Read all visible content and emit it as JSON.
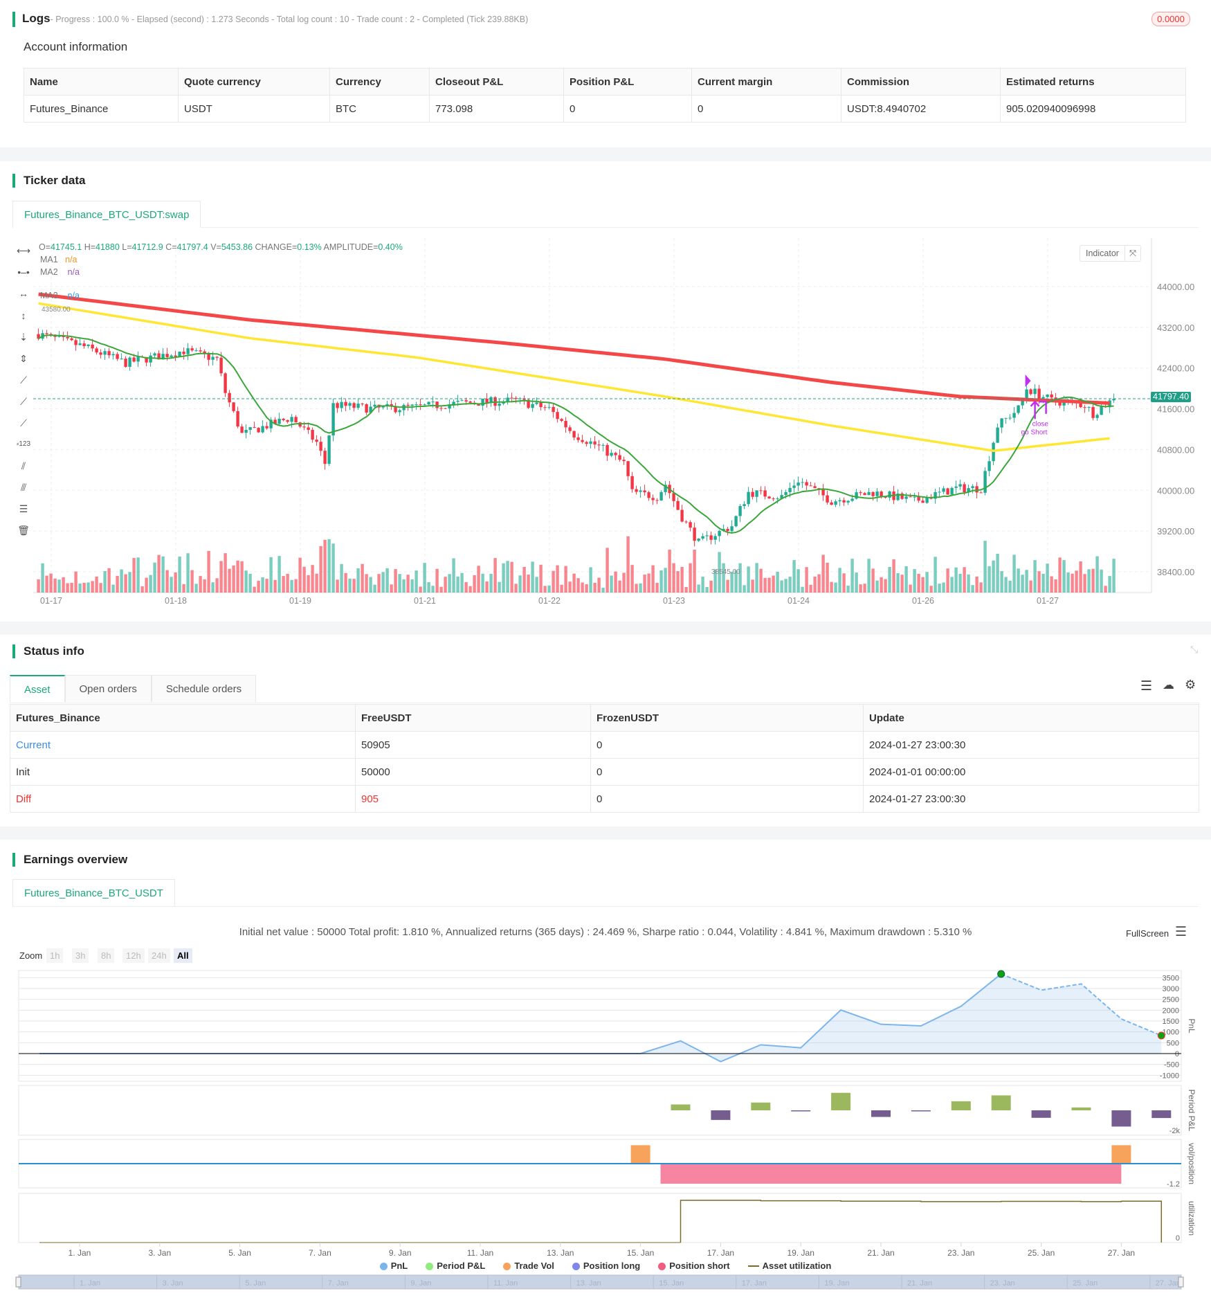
{
  "logs": {
    "title": "Logs",
    "status": "- Progress : 100.0 % - Elapsed (second) : 1.273  Seconds - Total log count : 10 - Trade count : 2 - Completed (Tick 239.88KB)",
    "badge": "0.0000"
  },
  "account": {
    "title": "Account information",
    "columns": [
      "Name",
      "Quote currency",
      "Currency",
      "Closeout P&L",
      "Position P&L",
      "Current margin",
      "Commission",
      "Estimated returns"
    ],
    "row": [
      "Futures_Binance",
      "USDT",
      "BTC",
      "773.098",
      "0",
      "0",
      "USDT:8.4940702",
      "905.020940096998"
    ]
  },
  "ticker": {
    "title": "Ticker data",
    "tab": "Futures_Binance_BTC_USDT:swap",
    "ohlc": {
      "o_label": "O=",
      "o": "41745.1",
      "h_label": " H=",
      "h": "41880",
      "l_label": " L=",
      "l": "41712.9",
      "c_label": " C=",
      "c": "41797.4",
      "v_label": " V=",
      "v": "5453.86",
      "chg_label": " CHANGE=",
      "chg": "0.13%",
      "amp_label": " AMPLITUDE=",
      "amp": "0.40%"
    },
    "ma": [
      {
        "label": "MA1",
        "value": "n/a",
        "color": "#f7931a"
      },
      {
        "label": "MA2",
        "value": "n/a",
        "color": "#9b59b6"
      },
      {
        "label": "MA3",
        "value": "n/a",
        "color": "#3498db"
      }
    ],
    "indicator_label": "Indicator",
    "last_price": "41797.40",
    "high_label": "43580.00",
    "low_label": "38545.00",
    "signals": {
      "close": "close",
      "short": "go Short"
    },
    "y_ticks": [
      "44000.00",
      "43200.00",
      "42400.00",
      "41600.00",
      "40800.00",
      "40000.00",
      "39200.00",
      "38400.00"
    ],
    "x_ticks": [
      "01-17",
      "01-18",
      "01-19",
      "01-21",
      "01-22",
      "01-23",
      "01-24",
      "01-26",
      "01-27"
    ],
    "colors": {
      "up": "#22ab94",
      "down": "#f23645",
      "ma_long": "#f44747",
      "ma_mid": "#ffe633",
      "ma_fast": "#3aa63a"
    },
    "price_path": [
      [
        "01-16 21:00",
        43067
      ],
      [
        "01-17 08:00",
        42820
      ],
      [
        "01-17 18:00",
        42500
      ],
      [
        "01-18 08:00",
        42740
      ],
      [
        "01-18 16:00",
        42576
      ],
      [
        "01-18 18:00",
        41920
      ],
      [
        "01-18 22:00",
        41100
      ],
      [
        "01-19 04:00",
        41270
      ],
      [
        "01-19 10:00",
        41430
      ],
      [
        "01-19 16:00",
        40940
      ],
      [
        "01-19 18:00",
        40530
      ],
      [
        "01-19 20:00",
        41675
      ],
      [
        "01-20 06:00",
        41600
      ],
      [
        "01-20 16:00",
        41630
      ],
      [
        "01-21 02:00",
        41710
      ],
      [
        "01-21 16:00",
        41760
      ],
      [
        "01-22 00:00",
        41600
      ],
      [
        "01-22 06:00",
        41100
      ],
      [
        "01-22 12:00",
        40860
      ],
      [
        "01-22 18:00",
        40530
      ],
      [
        "01-22 20:00",
        39960
      ],
      [
        "01-23 02:00",
        39875
      ],
      [
        "01-23 04:00",
        40120
      ],
      [
        "01-23 08:00",
        39470
      ],
      [
        "01-23 12:00",
        38970
      ],
      [
        "01-23 16:00",
        39140
      ],
      [
        "01-23 20:00",
        39300
      ],
      [
        "01-24 00:00",
        39960
      ],
      [
        "01-24 08:00",
        39875
      ],
      [
        "01-24 12:00",
        40200
      ],
      [
        "01-24 20:00",
        39790
      ],
      [
        "01-25 06:00",
        39960
      ],
      [
        "01-25 16:00",
        39790
      ],
      [
        "01-26 02:00",
        40040
      ],
      [
        "01-26 08:00",
        40040
      ],
      [
        "01-26 12:00",
        41270
      ],
      [
        "01-26 17:00",
        41600
      ],
      [
        "01-26 19:00",
        42000
      ],
      [
        "01-27 01:00",
        41760
      ],
      [
        "01-27 09:00",
        41675
      ],
      [
        "01-27 11:00",
        41510
      ],
      [
        "01-27 16:00",
        41797.4
      ]
    ],
    "ma_long_path": [
      [
        "01-16 21:00",
        43850
      ],
      [
        "01-19 00:00",
        43345
      ],
      [
        "01-21 12:00",
        42900
      ],
      [
        "01-23 04:00",
        42575
      ],
      [
        "01-24 20:00",
        42118
      ],
      [
        "01-26 03:00",
        41840
      ],
      [
        "01-27 15:00",
        41710
      ]
    ],
    "ma_mid_path": [
      [
        "01-16 21:00",
        43670
      ],
      [
        "01-19 00:00",
        42985
      ],
      [
        "01-20 16:00",
        42610
      ],
      [
        "01-23 04:00",
        41840
      ],
      [
        "01-24 20:00",
        41270
      ],
      [
        "01-26 11:00",
        40775
      ],
      [
        "01-27 15:00",
        41020
      ]
    ]
  },
  "status": {
    "title": "Status info",
    "tabs": [
      "Asset",
      "Open orders",
      "Schedule orders"
    ],
    "columns": [
      "Futures_Binance",
      "FreeUSDT",
      "FrozenUSDT",
      "Update"
    ],
    "rows": [
      [
        "Current",
        "50905",
        "0",
        "2024-01-27 23:00:30"
      ],
      [
        "Init",
        "50000",
        "0",
        "2024-01-01 00:00:00"
      ],
      [
        "Diff",
        "905",
        "0",
        "2024-01-27 23:00:30"
      ]
    ]
  },
  "earnings": {
    "title": "Earnings overview",
    "tab": "Futures_Binance_BTC_USDT",
    "summary": "Initial net value : 50000 Total profit: 1.810 %, Annualized returns (365 days) : 24.469 %, Sharpe ratio : 0.044, Volatility : 4.841 %, Maximum drawdown : 5.310 %",
    "fullscreen": "FullScreen",
    "zoom_label": "Zoom",
    "zoom_options": [
      "1h",
      "3h",
      "8h",
      "12h",
      "24h",
      "All"
    ],
    "zoom_selected": "All"
  },
  "chart_data": {
    "type": "line",
    "x_ticks": [
      "1. Jan",
      "3. Jan",
      "5. Jan",
      "7. Jan",
      "9. Jan",
      "11. Jan",
      "13. Jan",
      "15. Jan",
      "17. Jan",
      "19. Jan",
      "21. Jan",
      "23. Jan",
      "25. Jan",
      "27. Jan"
    ],
    "pnl": {
      "axis_label": "PnL",
      "y_ticks": [
        "3500",
        "3000",
        "2500",
        "2000",
        "1500",
        "1000",
        "500",
        "0",
        "-500",
        "-1000"
      ],
      "ylim": [
        -1000,
        3500
      ],
      "x_day": [
        0,
        15,
        16,
        17,
        18,
        19,
        20,
        21,
        22,
        23,
        24,
        25,
        26,
        27,
        28
      ],
      "values": [
        0,
        0,
        585,
        -372,
        404,
        266,
        2010,
        1351,
        1277,
        2181,
        3670,
        2925,
        3213,
        1596,
        830
      ]
    },
    "period_pnl": {
      "axis_label": "Period P&L",
      "tick": "-2k",
      "x_day": [
        16,
        17,
        18,
        19,
        20,
        21,
        22,
        23,
        24,
        25,
        26,
        27,
        28
      ],
      "values": [
        585,
        -957,
        776,
        -60,
        1744,
        -659,
        -40,
        904,
        1489,
        -745,
        288,
        -1617,
        -766
      ],
      "colors": {
        "pos": "#9bb85f",
        "neg": "#755d8f"
      }
    },
    "vol_position": {
      "axis_label": "vol/position",
      "tick": "-1.2",
      "trade_vol": [
        [
          15,
          1.1
        ],
        [
          27,
          1.1
        ]
      ],
      "position_short": {
        "from": 15.5,
        "to": 27,
        "value": -1.2
      }
    },
    "utilization": {
      "axis_label": "utilization",
      "tick": "0",
      "x_day": [
        16,
        18,
        19,
        20,
        21,
        22,
        23,
        24,
        25,
        26,
        27,
        28,
        28
      ],
      "values": [
        1.0,
        0.99,
        0.99,
        0.98,
        0.98,
        0.97,
        0.97,
        0.975,
        0.975,
        0.97,
        0.98,
        0.98,
        0
      ]
    },
    "legend": [
      {
        "name": "PnL",
        "color": "#7cb5ec"
      },
      {
        "name": "Period P&L",
        "color": "#90ed7d"
      },
      {
        "name": "Trade Vol",
        "color": "#f7a35c"
      },
      {
        "name": "Position long",
        "color": "#8085e9"
      },
      {
        "name": "Position short",
        "color": "#f15c80"
      },
      {
        "name": "Asset utilization",
        "color": "#7a6a2a"
      }
    ],
    "navigator_ticks": [
      "1. Jan",
      "3. Jan",
      "5. Jan",
      "7. Jan",
      "9. Jan",
      "11. Jan",
      "13. Jan",
      "15. Jan",
      "17. Jan",
      "19. Jan",
      "21. Jan",
      "23. Jan",
      "25. Jan",
      "27. Jan"
    ]
  }
}
